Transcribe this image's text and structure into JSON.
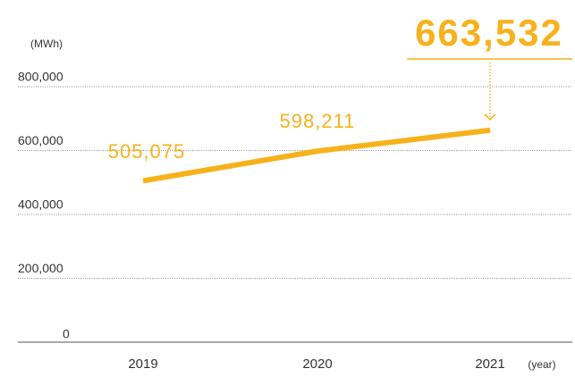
{
  "chart_data": {
    "type": "line",
    "y_unit": "(MWh)",
    "x_unit": "(year)",
    "categories": [
      "2019",
      "2020",
      "2021"
    ],
    "series": [
      {
        "color": "#f7b21b",
        "values": [
          505075,
          598211,
          663532
        ],
        "value_labels": [
          "505,075",
          "598,211",
          "663,532"
        ]
      }
    ],
    "ylim": [
      0,
      800000
    ],
    "yticks": [
      {
        "value": 0,
        "label": "0"
      },
      {
        "value": 200000,
        "label": "200,000"
      },
      {
        "value": 400000,
        "label": "400,000"
      },
      {
        "value": 600000,
        "label": "600,000"
      },
      {
        "value": 800000,
        "label": "800,000"
      }
    ],
    "grid": true
  }
}
